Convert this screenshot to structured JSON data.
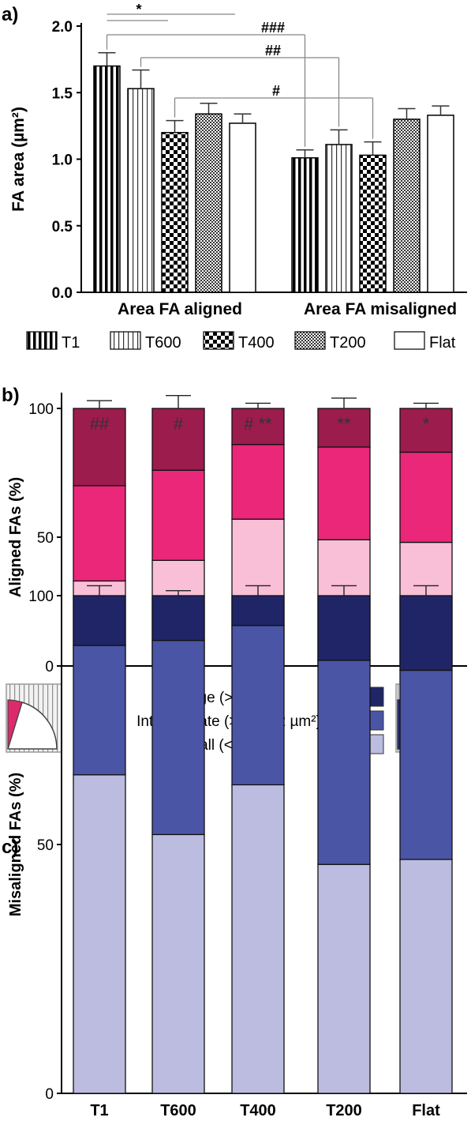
{
  "colors": {
    "aligned_large": "#9c1c4e",
    "aligned_intermediate": "#ea2779",
    "aligned_small": "#f9bfd6",
    "mis_large": "#1f2566",
    "mis_intermediate": "#4b55a6",
    "mis_small": "#bbbcdf"
  },
  "chart_data": [
    {
      "panel": "a)",
      "type": "bar",
      "ylabel": "FA area (µm²)",
      "ylim": [
        0,
        2.0
      ],
      "yticks": [
        "0.0",
        "0.5",
        "1.0",
        "1.5",
        "2.0"
      ],
      "groups": [
        "Area FA aligned",
        "Area FA misaligned"
      ],
      "series": [
        {
          "name": "T1",
          "pattern": "vertical-thick-stripes",
          "values": [
            1.7,
            1.01
          ],
          "errors": [
            0.1,
            0.06
          ]
        },
        {
          "name": "T600",
          "pattern": "vertical-thin-stripes",
          "values": [
            1.53,
            1.11
          ],
          "errors": [
            0.14,
            0.11
          ]
        },
        {
          "name": "T400",
          "pattern": "large-checker",
          "values": [
            1.2,
            1.03
          ],
          "errors": [
            0.09,
            0.1
          ]
        },
        {
          "name": "T200",
          "pattern": "small-checker",
          "values": [
            1.34,
            1.3
          ],
          "errors": [
            0.08,
            0.08
          ]
        },
        {
          "name": "Flat",
          "pattern": "none",
          "values": [
            1.27,
            1.33
          ],
          "errors": [
            0.07,
            0.07
          ]
        }
      ],
      "significance": [
        {
          "label": "*",
          "from": "T1 aligned",
          "to": "T200 aligned"
        },
        {
          "label": "###",
          "from": "T1 aligned",
          "to": "T1 misaligned"
        },
        {
          "label": "##",
          "from": "T600 aligned",
          "to": "T600 misaligned"
        },
        {
          "label": "#",
          "from": "T400 aligned",
          "to": "T400 misaligned"
        }
      ]
    },
    {
      "panel": "b)",
      "type": "bar",
      "stacked": true,
      "ylabel": "Aligned FAs (%)",
      "ylim": [
        0,
        100
      ],
      "yticks": [
        "0",
        "50",
        "100"
      ],
      "categories": [
        "T1",
        "T600",
        "T400",
        "T200",
        "Flat"
      ],
      "series": [
        {
          "name": "Small (< 1 µm²)",
          "values": [
            33,
            41,
            57,
            49,
            48
          ],
          "errors": [
            5,
            2,
            3,
            2,
            6
          ]
        },
        {
          "name": "Intermediate (>1 & < 2 µm²)",
          "values": [
            37,
            35,
            29,
            36,
            35
          ],
          "errors": [
            4,
            2,
            2,
            5,
            5
          ]
        },
        {
          "name": "Large (> 2 µm²)",
          "values": [
            30,
            24,
            14,
            15,
            17
          ],
          "errors": [
            3,
            5,
            2,
            4,
            2
          ]
        }
      ],
      "annotations": [
        {
          "category": "T1",
          "segment": "large",
          "text": "##"
        },
        {
          "category": "T600",
          "segment": "large",
          "text": "#"
        },
        {
          "category": "T400",
          "segment": "large",
          "text": "# **"
        },
        {
          "category": "T200",
          "segment": "large",
          "text": "**"
        },
        {
          "category": "Flat",
          "segment": "large",
          "text": "*"
        },
        {
          "category": "T400",
          "segment": "small",
          "text": "**"
        },
        {
          "category": "T200",
          "segment": "small",
          "text": "*"
        }
      ]
    },
    {
      "panel": "c)",
      "type": "bar",
      "stacked": true,
      "ylabel": "Misaligned FAs (%)",
      "ylim": [
        0,
        100
      ],
      "yticks": [
        "0",
        "50",
        "100"
      ],
      "categories": [
        "T1",
        "T600",
        "T400",
        "T200",
        "Flat"
      ],
      "series": [
        {
          "name": "Small (< 1 µm²)",
          "values": [
            64,
            52,
            62,
            46,
            47
          ],
          "errors": [
            6,
            6,
            6,
            6,
            5
          ]
        },
        {
          "name": "Intermediate (>1 & < 2 µm²)",
          "values": [
            26,
            39,
            32,
            41,
            38
          ],
          "errors": [
            5,
            7,
            4,
            4,
            3
          ]
        },
        {
          "name": "Large (> 2 µm²)",
          "values": [
            10,
            9,
            6,
            13,
            15
          ],
          "errors": [
            2,
            1,
            2,
            2,
            2
          ]
        }
      ]
    }
  ],
  "legend": {
    "large": "Large (> 2 µm²)",
    "intermediate": "Intermediate (>1 & < 2 µm²)",
    "small": "Small (< 1 µm²)"
  }
}
